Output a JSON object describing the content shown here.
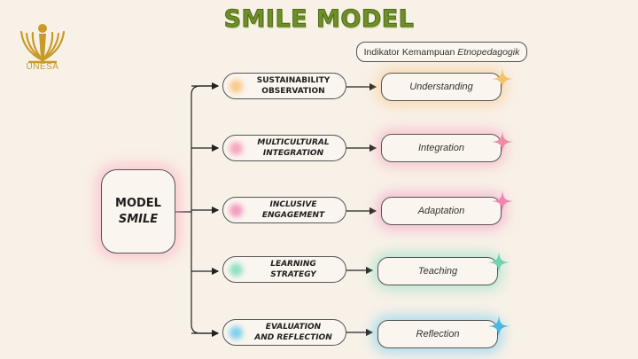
{
  "title": "SMILE MODEL",
  "logo": {
    "label": "UNESA",
    "color": "#c89a2a"
  },
  "indicator": {
    "prefix": "Indikator Kemampuan ",
    "emphasis": "Etnopedagogik"
  },
  "model": {
    "line1": "MODEL",
    "line2": "SMILE"
  },
  "rows": [
    {
      "stage_line1": "SUSTAINABILITY",
      "stage_line2": "OBSERVATION",
      "indicator": "Understanding",
      "glow": "#f9c98a",
      "spark": "#f4c06a"
    },
    {
      "stage_line1": "MULTICULTURAL",
      "stage_line2": "INTEGRATION",
      "indicator": "Integration",
      "glow": "#f6a6bd",
      "spark": "#f08aa6"
    },
    {
      "stage_line1": "INCLUSIVE",
      "stage_line2": "ENGAGEMENT",
      "indicator": "Adaptation",
      "glow": "#f49ac0",
      "spark": "#ef86b0"
    },
    {
      "stage_line1": "LEARNING",
      "stage_line2": "STRATEGY",
      "indicator": "Teaching",
      "glow": "#8fe0c4",
      "spark": "#6fd3b4"
    },
    {
      "stage_line1": "EVALUATION",
      "stage_line2": "AND REFLECTION",
      "indicator": "Reflection",
      "glow": "#7fd0ef",
      "spark": "#49b8e6"
    }
  ]
}
